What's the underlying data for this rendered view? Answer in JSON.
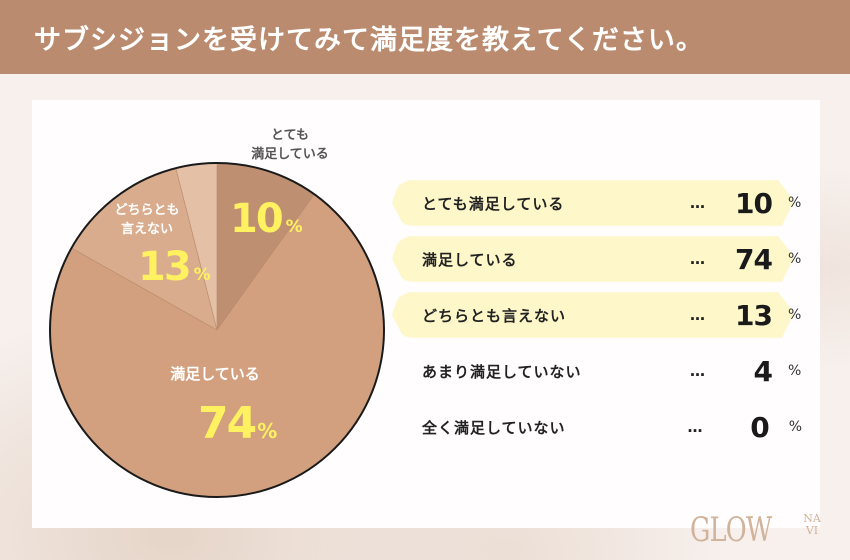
{
  "header": {
    "title": "サブシジョンを受けてみて満足度を教えてください。"
  },
  "chart_data": {
    "type": "pie",
    "title": "サブシジョンを受けてみて満足度を教えてください。",
    "categories": [
      "とても満足している",
      "満足している",
      "どちらとも言えない",
      "あまり満足していない",
      "全く満足していない"
    ],
    "values": [
      10,
      74,
      13,
      4,
      0
    ],
    "unit": "%",
    "colors": [
      "#bf8f71",
      "#d2a07e",
      "#d8ac8d",
      "#e4c0a7",
      "#e4c0a7"
    ],
    "start_angle": "12 o'clock",
    "direction": "clockwise",
    "legend_position": "right"
  },
  "pie_labels": {
    "top_line1": "とても",
    "top_line2": "満足している",
    "mid_line1": "どちらとも",
    "mid_line2": "言えない",
    "main": "満足している",
    "pct_10": "10",
    "pct_13": "13",
    "pct_74": "74",
    "pct_symbol": "%"
  },
  "legend": {
    "dots": "…",
    "percent": "%",
    "items": [
      {
        "label": "とても満足している",
        "value": "10",
        "highlight": true
      },
      {
        "label": "満足している",
        "value": "74",
        "highlight": true
      },
      {
        "label": "どちらとも言えない",
        "value": "13",
        "highlight": true
      },
      {
        "label": "あまり満足していない",
        "value": "4",
        "highlight": false
      },
      {
        "label": "全く満足していない",
        "value": "0",
        "highlight": false
      }
    ]
  },
  "logo": {
    "text": "GLOW",
    "sub_top": "NA",
    "sub_bottom": "VI"
  }
}
